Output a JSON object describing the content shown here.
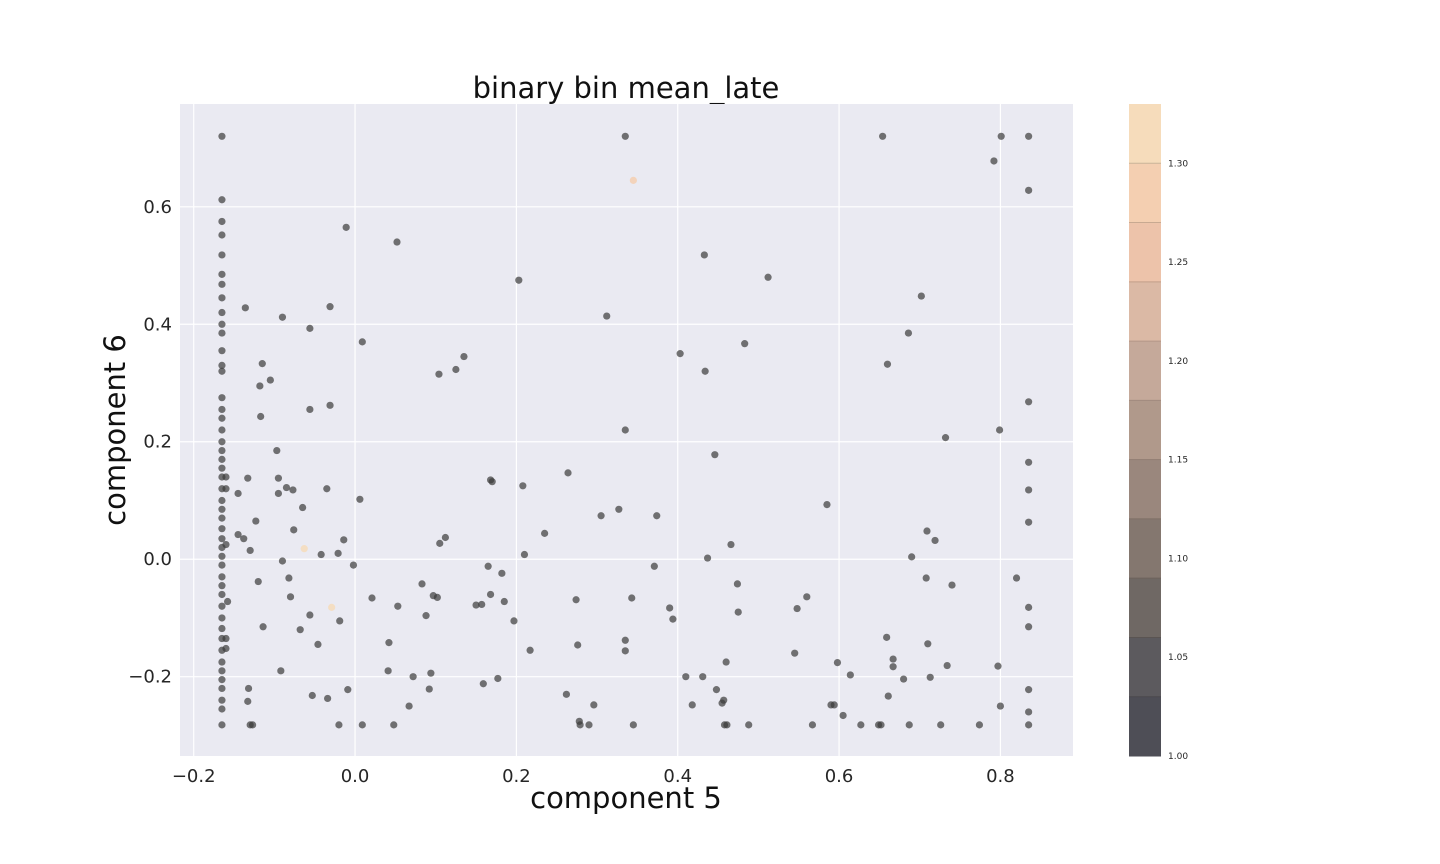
{
  "chart_data": {
    "type": "scatter",
    "title": "binary bin mean_late",
    "xlabel": "component 5",
    "ylabel": "component 6",
    "xlim": [
      -0.217,
      0.89
    ],
    "ylim": [
      -0.335,
      0.775
    ],
    "x_ticks": [
      -0.2,
      0.0,
      0.2,
      0.4,
      0.6,
      0.8
    ],
    "x_tick_labels": [
      "−0.2",
      "0.0",
      "0.2",
      "0.4",
      "0.6",
      "0.8"
    ],
    "y_ticks": [
      -0.2,
      0.0,
      0.2,
      0.4,
      0.6
    ],
    "y_tick_labels": [
      "−0.2",
      "0.0",
      "0.2",
      "0.4",
      "0.6"
    ],
    "grid": true,
    "point_color": "#3a3a3a",
    "background_color": "#eaeaf2",
    "colorbar": {
      "min": 1.0,
      "max": 1.33,
      "ticks": [
        1.0,
        1.05,
        1.1,
        1.15,
        1.2,
        1.25,
        1.3
      ],
      "tick_labels": [
        "1.00",
        "1.05",
        "1.10",
        "1.15",
        "1.20",
        "1.25",
        "1.30"
      ],
      "colors": [
        "#4e4e56",
        "#5c5a5e",
        "#6f6864",
        "#84776f",
        "#9a877d",
        "#b0998b",
        "#c5a99a",
        "#dbb9a5",
        "#edc3aa",
        "#f4cfb1",
        "#f6dcbb"
      ]
    },
    "points": [
      {
        "x": -0.165,
        "y": 0.72,
        "v": 1.0
      },
      {
        "x": -0.165,
        "y": 0.612,
        "v": 1.0
      },
      {
        "x": -0.165,
        "y": 0.575,
        "v": 1.0
      },
      {
        "x": -0.165,
        "y": 0.552,
        "v": 1.0
      },
      {
        "x": -0.165,
        "y": 0.518,
        "v": 1.0
      },
      {
        "x": -0.165,
        "y": 0.485,
        "v": 1.0
      },
      {
        "x": -0.165,
        "y": 0.468,
        "v": 1.0
      },
      {
        "x": -0.165,
        "y": 0.445,
        "v": 1.0
      },
      {
        "x": -0.165,
        "y": 0.42,
        "v": 1.0
      },
      {
        "x": -0.165,
        "y": 0.4,
        "v": 1.0
      },
      {
        "x": -0.165,
        "y": 0.385,
        "v": 1.0
      },
      {
        "x": -0.165,
        "y": 0.355,
        "v": 1.0
      },
      {
        "x": -0.165,
        "y": 0.33,
        "v": 1.0
      },
      {
        "x": -0.165,
        "y": 0.32,
        "v": 1.0
      },
      {
        "x": -0.165,
        "y": 0.275,
        "v": 1.0
      },
      {
        "x": -0.165,
        "y": 0.255,
        "v": 1.0
      },
      {
        "x": -0.165,
        "y": 0.24,
        "v": 1.0
      },
      {
        "x": -0.165,
        "y": 0.22,
        "v": 1.0
      },
      {
        "x": -0.165,
        "y": 0.2,
        "v": 1.0
      },
      {
        "x": -0.165,
        "y": 0.185,
        "v": 1.0
      },
      {
        "x": -0.165,
        "y": 0.17,
        "v": 1.0
      },
      {
        "x": -0.165,
        "y": 0.155,
        "v": 1.0
      },
      {
        "x": -0.165,
        "y": 0.14,
        "v": 1.0
      },
      {
        "x": -0.165,
        "y": 0.12,
        "v": 1.0
      },
      {
        "x": -0.165,
        "y": 0.1,
        "v": 1.0
      },
      {
        "x": -0.165,
        "y": 0.085,
        "v": 1.0
      },
      {
        "x": -0.165,
        "y": 0.07,
        "v": 1.0
      },
      {
        "x": -0.165,
        "y": 0.052,
        "v": 1.0
      },
      {
        "x": -0.165,
        "y": 0.035,
        "v": 1.0
      },
      {
        "x": -0.165,
        "y": 0.02,
        "v": 1.0
      },
      {
        "x": -0.165,
        "y": 0.005,
        "v": 1.0
      },
      {
        "x": -0.165,
        "y": -0.01,
        "v": 1.0
      },
      {
        "x": -0.165,
        "y": -0.03,
        "v": 1.0
      },
      {
        "x": -0.165,
        "y": -0.045,
        "v": 1.0
      },
      {
        "x": -0.165,
        "y": -0.06,
        "v": 1.0
      },
      {
        "x": -0.165,
        "y": -0.08,
        "v": 1.0
      },
      {
        "x": -0.165,
        "y": -0.1,
        "v": 1.0
      },
      {
        "x": -0.165,
        "y": -0.118,
        "v": 1.0
      },
      {
        "x": -0.165,
        "y": -0.135,
        "v": 1.0
      },
      {
        "x": -0.165,
        "y": -0.155,
        "v": 1.0
      },
      {
        "x": -0.165,
        "y": -0.175,
        "v": 1.0
      },
      {
        "x": -0.165,
        "y": -0.19,
        "v": 1.0
      },
      {
        "x": -0.165,
        "y": -0.205,
        "v": 1.0
      },
      {
        "x": -0.165,
        "y": -0.22,
        "v": 1.0
      },
      {
        "x": -0.165,
        "y": -0.24,
        "v": 1.0
      },
      {
        "x": -0.165,
        "y": -0.255,
        "v": 1.0
      },
      {
        "x": -0.165,
        "y": -0.282,
        "v": 1.0
      },
      {
        "x": -0.16,
        "y": 0.14,
        "v": 1.0
      },
      {
        "x": -0.16,
        "y": 0.12,
        "v": 1.0
      },
      {
        "x": -0.16,
        "y": 0.025,
        "v": 1.0
      },
      {
        "x": -0.158,
        "y": -0.072,
        "v": 1.0
      },
      {
        "x": -0.16,
        "y": -0.135,
        "v": 1.0
      },
      {
        "x": -0.16,
        "y": -0.152,
        "v": 1.0
      },
      {
        "x": -0.145,
        "y": 0.112,
        "v": 1.0
      },
      {
        "x": -0.145,
        "y": 0.042,
        "v": 1.0
      },
      {
        "x": -0.138,
        "y": 0.035,
        "v": 1.0
      },
      {
        "x": -0.136,
        "y": 0.428,
        "v": 1.0
      },
      {
        "x": -0.133,
        "y": 0.138,
        "v": 1.0
      },
      {
        "x": -0.13,
        "y": 0.015,
        "v": 1.0
      },
      {
        "x": -0.132,
        "y": -0.22,
        "v": 1.0
      },
      {
        "x": -0.133,
        "y": -0.242,
        "v": 1.0
      },
      {
        "x": -0.13,
        "y": -0.282,
        "v": 1.0
      },
      {
        "x": -0.127,
        "y": -0.282,
        "v": 1.0
      },
      {
        "x": -0.123,
        "y": 0.065,
        "v": 1.0
      },
      {
        "x": -0.12,
        "y": -0.038,
        "v": 1.0
      },
      {
        "x": -0.118,
        "y": 0.295,
        "v": 1.0
      },
      {
        "x": -0.117,
        "y": 0.243,
        "v": 1.0
      },
      {
        "x": -0.115,
        "y": 0.333,
        "v": 1.0
      },
      {
        "x": -0.114,
        "y": -0.115,
        "v": 1.0
      },
      {
        "x": -0.105,
        "y": 0.305,
        "v": 1.0
      },
      {
        "x": -0.097,
        "y": 0.185,
        "v": 1.0
      },
      {
        "x": -0.095,
        "y": 0.138,
        "v": 1.0
      },
      {
        "x": -0.095,
        "y": 0.112,
        "v": 1.0
      },
      {
        "x": -0.092,
        "y": -0.19,
        "v": 1.0
      },
      {
        "x": -0.09,
        "y": 0.412,
        "v": 1.0
      },
      {
        "x": -0.09,
        "y": -0.003,
        "v": 1.0
      },
      {
        "x": -0.085,
        "y": 0.122,
        "v": 1.0
      },
      {
        "x": -0.082,
        "y": -0.032,
        "v": 1.0
      },
      {
        "x": -0.08,
        "y": -0.064,
        "v": 1.0
      },
      {
        "x": -0.077,
        "y": 0.118,
        "v": 1.0
      },
      {
        "x": -0.076,
        "y": 0.05,
        "v": 1.0
      },
      {
        "x": -0.068,
        "y": -0.12,
        "v": 1.0
      },
      {
        "x": -0.065,
        "y": 0.088,
        "v": 1.0
      },
      {
        "x": -0.063,
        "y": 0.018,
        "v": 1.32
      },
      {
        "x": -0.056,
        "y": 0.393,
        "v": 1.0
      },
      {
        "x": -0.056,
        "y": 0.255,
        "v": 1.0
      },
      {
        "x": -0.056,
        "y": -0.095,
        "v": 1.0
      },
      {
        "x": -0.053,
        "y": -0.232,
        "v": 1.0
      },
      {
        "x": -0.046,
        "y": -0.145,
        "v": 1.0
      },
      {
        "x": -0.042,
        "y": 0.008,
        "v": 1.0
      },
      {
        "x": -0.035,
        "y": 0.12,
        "v": 1.0
      },
      {
        "x": -0.034,
        "y": -0.237,
        "v": 1.0
      },
      {
        "x": -0.031,
        "y": 0.43,
        "v": 1.0
      },
      {
        "x": -0.031,
        "y": 0.262,
        "v": 1.0
      },
      {
        "x": -0.029,
        "y": -0.082,
        "v": 1.3
      },
      {
        "x": -0.021,
        "y": 0.01,
        "v": 1.0
      },
      {
        "x": -0.019,
        "y": -0.105,
        "v": 1.0
      },
      {
        "x": -0.02,
        "y": -0.282,
        "v": 1.0
      },
      {
        "x": -0.014,
        "y": 0.033,
        "v": 1.0
      },
      {
        "x": -0.011,
        "y": 0.565,
        "v": 1.0
      },
      {
        "x": -0.009,
        "y": -0.222,
        "v": 1.0
      },
      {
        "x": -0.002,
        "y": -0.01,
        "v": 1.0
      },
      {
        "x": 0.006,
        "y": 0.102,
        "v": 1.0
      },
      {
        "x": 0.009,
        "y": 0.37,
        "v": 1.0
      },
      {
        "x": 0.009,
        "y": -0.282,
        "v": 1.0
      },
      {
        "x": 0.021,
        "y": -0.066,
        "v": 1.0
      },
      {
        "x": 0.041,
        "y": -0.19,
        "v": 1.0
      },
      {
        "x": 0.042,
        "y": -0.142,
        "v": 1.0
      },
      {
        "x": 0.048,
        "y": -0.282,
        "v": 1.0
      },
      {
        "x": 0.052,
        "y": 0.54,
        "v": 1.0
      },
      {
        "x": 0.053,
        "y": -0.08,
        "v": 1.0
      },
      {
        "x": 0.067,
        "y": -0.25,
        "v": 1.0
      },
      {
        "x": 0.072,
        "y": -0.2,
        "v": 1.0
      },
      {
        "x": 0.083,
        "y": -0.042,
        "v": 1.0
      },
      {
        "x": 0.088,
        "y": -0.096,
        "v": 1.0
      },
      {
        "x": 0.092,
        "y": -0.221,
        "v": 1.0
      },
      {
        "x": 0.094,
        "y": -0.194,
        "v": 1.0
      },
      {
        "x": 0.097,
        "y": -0.062,
        "v": 1.0
      },
      {
        "x": 0.102,
        "y": -0.065,
        "v": 1.0
      },
      {
        "x": 0.104,
        "y": 0.315,
        "v": 1.0
      },
      {
        "x": 0.105,
        "y": 0.027,
        "v": 1.0
      },
      {
        "x": 0.112,
        "y": 0.037,
        "v": 1.0
      },
      {
        "x": 0.125,
        "y": 0.323,
        "v": 1.0
      },
      {
        "x": 0.135,
        "y": 0.345,
        "v": 1.0
      },
      {
        "x": 0.15,
        "y": -0.078,
        "v": 1.0
      },
      {
        "x": 0.157,
        "y": -0.077,
        "v": 1.0
      },
      {
        "x": 0.159,
        "y": -0.212,
        "v": 1.0
      },
      {
        "x": 0.165,
        "y": -0.012,
        "v": 1.0
      },
      {
        "x": 0.168,
        "y": 0.135,
        "v": 1.0
      },
      {
        "x": 0.168,
        "y": -0.06,
        "v": 1.0
      },
      {
        "x": 0.17,
        "y": 0.132,
        "v": 1.0
      },
      {
        "x": 0.177,
        "y": -0.203,
        "v": 1.0
      },
      {
        "x": 0.182,
        "y": -0.024,
        "v": 1.0
      },
      {
        "x": 0.185,
        "y": -0.072,
        "v": 1.0
      },
      {
        "x": 0.197,
        "y": -0.105,
        "v": 1.0
      },
      {
        "x": 0.203,
        "y": 0.475,
        "v": 1.0
      },
      {
        "x": 0.208,
        "y": 0.125,
        "v": 1.0
      },
      {
        "x": 0.21,
        "y": 0.008,
        "v": 1.0
      },
      {
        "x": 0.217,
        "y": -0.155,
        "v": 1.0
      },
      {
        "x": 0.235,
        "y": 0.044,
        "v": 1.0
      },
      {
        "x": 0.262,
        "y": -0.23,
        "v": 1.0
      },
      {
        "x": 0.264,
        "y": 0.147,
        "v": 1.0
      },
      {
        "x": 0.274,
        "y": -0.069,
        "v": 1.0
      },
      {
        "x": 0.276,
        "y": -0.146,
        "v": 1.0
      },
      {
        "x": 0.278,
        "y": -0.276,
        "v": 1.0
      },
      {
        "x": 0.279,
        "y": -0.282,
        "v": 1.0
      },
      {
        "x": 0.29,
        "y": -0.282,
        "v": 1.0
      },
      {
        "x": 0.296,
        "y": -0.248,
        "v": 1.0
      },
      {
        "x": 0.305,
        "y": 0.074,
        "v": 1.0
      },
      {
        "x": 0.312,
        "y": 0.414,
        "v": 1.0
      },
      {
        "x": 0.327,
        "y": 0.085,
        "v": 1.0
      },
      {
        "x": 0.335,
        "y": 0.72,
        "v": 1.0
      },
      {
        "x": 0.335,
        "y": 0.22,
        "v": 1.0
      },
      {
        "x": 0.335,
        "y": -0.138,
        "v": 1.0
      },
      {
        "x": 0.335,
        "y": -0.156,
        "v": 1.0
      },
      {
        "x": 0.343,
        "y": -0.066,
        "v": 1.0
      },
      {
        "x": 0.345,
        "y": 0.645,
        "v": 1.28
      },
      {
        "x": 0.345,
        "y": -0.282,
        "v": 1.0
      },
      {
        "x": 0.371,
        "y": -0.012,
        "v": 1.0
      },
      {
        "x": 0.374,
        "y": 0.074,
        "v": 1.0
      },
      {
        "x": 0.39,
        "y": -0.083,
        "v": 1.0
      },
      {
        "x": 0.394,
        "y": -0.102,
        "v": 1.0
      },
      {
        "x": 0.403,
        "y": 0.35,
        "v": 1.0
      },
      {
        "x": 0.41,
        "y": -0.2,
        "v": 1.0
      },
      {
        "x": 0.418,
        "y": -0.248,
        "v": 1.0
      },
      {
        "x": 0.431,
        "y": -0.2,
        "v": 1.0
      },
      {
        "x": 0.433,
        "y": 0.518,
        "v": 1.0
      },
      {
        "x": 0.434,
        "y": 0.32,
        "v": 1.0
      },
      {
        "x": 0.437,
        "y": 0.002,
        "v": 1.0
      },
      {
        "x": 0.446,
        "y": 0.178,
        "v": 1.0
      },
      {
        "x": 0.448,
        "y": -0.222,
        "v": 1.0
      },
      {
        "x": 0.455,
        "y": -0.245,
        "v": 1.0
      },
      {
        "x": 0.457,
        "y": -0.24,
        "v": 1.0
      },
      {
        "x": 0.458,
        "y": -0.282,
        "v": 1.0
      },
      {
        "x": 0.46,
        "y": -0.175,
        "v": 1.0
      },
      {
        "x": 0.461,
        "y": -0.282,
        "v": 1.0
      },
      {
        "x": 0.466,
        "y": 0.025,
        "v": 1.0
      },
      {
        "x": 0.474,
        "y": -0.042,
        "v": 1.0
      },
      {
        "x": 0.475,
        "y": -0.09,
        "v": 1.0
      },
      {
        "x": 0.483,
        "y": 0.367,
        "v": 1.0
      },
      {
        "x": 0.488,
        "y": -0.282,
        "v": 1.0
      },
      {
        "x": 0.512,
        "y": 0.48,
        "v": 1.0
      },
      {
        "x": 0.545,
        "y": -0.16,
        "v": 1.0
      },
      {
        "x": 0.548,
        "y": -0.084,
        "v": 1.0
      },
      {
        "x": 0.56,
        "y": -0.064,
        "v": 1.0
      },
      {
        "x": 0.567,
        "y": -0.282,
        "v": 1.0
      },
      {
        "x": 0.585,
        "y": 0.093,
        "v": 1.0
      },
      {
        "x": 0.59,
        "y": -0.248,
        "v": 1.0
      },
      {
        "x": 0.594,
        "y": -0.248,
        "v": 1.0
      },
      {
        "x": 0.598,
        "y": -0.176,
        "v": 1.0
      },
      {
        "x": 0.605,
        "y": -0.266,
        "v": 1.0
      },
      {
        "x": 0.614,
        "y": -0.197,
        "v": 1.0
      },
      {
        "x": 0.627,
        "y": -0.282,
        "v": 1.0
      },
      {
        "x": 0.649,
        "y": -0.282,
        "v": 1.0
      },
      {
        "x": 0.652,
        "y": -0.282,
        "v": 1.0
      },
      {
        "x": 0.654,
        "y": 0.72,
        "v": 1.0
      },
      {
        "x": 0.659,
        "y": -0.133,
        "v": 1.0
      },
      {
        "x": 0.66,
        "y": 0.332,
        "v": 1.0
      },
      {
        "x": 0.661,
        "y": -0.233,
        "v": 1.0
      },
      {
        "x": 0.667,
        "y": -0.17,
        "v": 1.0
      },
      {
        "x": 0.667,
        "y": -0.183,
        "v": 1.0
      },
      {
        "x": 0.68,
        "y": -0.204,
        "v": 1.0
      },
      {
        "x": 0.686,
        "y": 0.385,
        "v": 1.0
      },
      {
        "x": 0.687,
        "y": -0.282,
        "v": 1.0
      },
      {
        "x": 0.69,
        "y": 0.004,
        "v": 1.0
      },
      {
        "x": 0.702,
        "y": 0.448,
        "v": 1.0
      },
      {
        "x": 0.708,
        "y": -0.032,
        "v": 1.0
      },
      {
        "x": 0.709,
        "y": 0.048,
        "v": 1.0
      },
      {
        "x": 0.71,
        "y": -0.144,
        "v": 1.0
      },
      {
        "x": 0.713,
        "y": -0.201,
        "v": 1.0
      },
      {
        "x": 0.719,
        "y": 0.032,
        "v": 1.0
      },
      {
        "x": 0.726,
        "y": -0.282,
        "v": 1.0
      },
      {
        "x": 0.732,
        "y": 0.207,
        "v": 1.0
      },
      {
        "x": 0.734,
        "y": -0.181,
        "v": 1.0
      },
      {
        "x": 0.74,
        "y": -0.044,
        "v": 1.0
      },
      {
        "x": 0.774,
        "y": -0.282,
        "v": 1.0
      },
      {
        "x": 0.792,
        "y": 0.678,
        "v": 1.0
      },
      {
        "x": 0.797,
        "y": -0.182,
        "v": 1.0
      },
      {
        "x": 0.799,
        "y": 0.22,
        "v": 1.0
      },
      {
        "x": 0.8,
        "y": -0.25,
        "v": 1.0
      },
      {
        "x": 0.801,
        "y": 0.72,
        "v": 1.0
      },
      {
        "x": 0.82,
        "y": -0.032,
        "v": 1.0
      },
      {
        "x": 0.835,
        "y": 0.72,
        "v": 1.0
      },
      {
        "x": 0.835,
        "y": 0.628,
        "v": 1.0
      },
      {
        "x": 0.835,
        "y": 0.268,
        "v": 1.0
      },
      {
        "x": 0.835,
        "y": 0.165,
        "v": 1.0
      },
      {
        "x": 0.835,
        "y": 0.118,
        "v": 1.0
      },
      {
        "x": 0.835,
        "y": 0.063,
        "v": 1.0
      },
      {
        "x": 0.835,
        "y": -0.082,
        "v": 1.0
      },
      {
        "x": 0.835,
        "y": -0.115,
        "v": 1.0
      },
      {
        "x": 0.835,
        "y": -0.222,
        "v": 1.0
      },
      {
        "x": 0.835,
        "y": -0.26,
        "v": 1.0
      },
      {
        "x": 0.835,
        "y": -0.282,
        "v": 1.0
      }
    ]
  }
}
